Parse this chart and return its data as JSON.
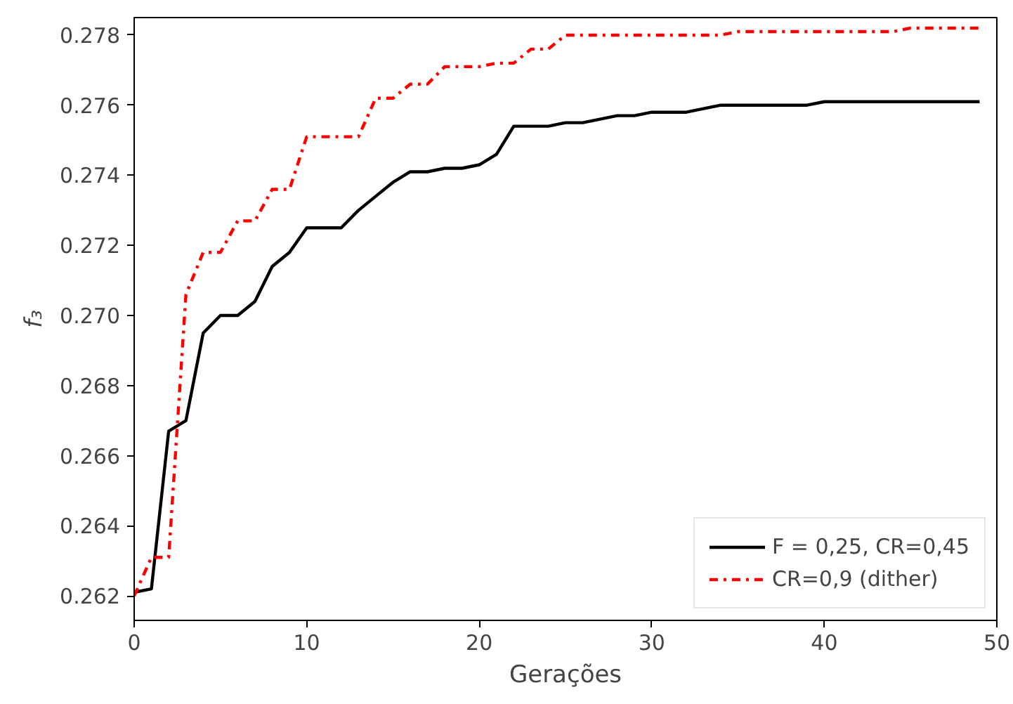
{
  "chart_data": {
    "type": "line",
    "xlabel": "Gerações",
    "ylabel": "f₃",
    "x": [
      0,
      1,
      2,
      3,
      4,
      5,
      6,
      7,
      8,
      9,
      10,
      11,
      12,
      13,
      14,
      15,
      16,
      17,
      18,
      19,
      20,
      21,
      22,
      23,
      24,
      25,
      26,
      27,
      28,
      29,
      30,
      31,
      32,
      33,
      34,
      35,
      36,
      37,
      38,
      39,
      40,
      41,
      42,
      43,
      44,
      45,
      46,
      47,
      48,
      49
    ],
    "series": [
      {
        "name": "F = 0,25, CR=0,45",
        "color": "#000000",
        "line_style": "solid",
        "values": [
          0.2621,
          0.2622,
          0.2667,
          0.267,
          0.2695,
          0.27,
          0.27,
          0.2704,
          0.2714,
          0.2718,
          0.2725,
          0.2725,
          0.2725,
          0.273,
          0.2734,
          0.2738,
          0.2741,
          0.2741,
          0.2742,
          0.2742,
          0.2743,
          0.2746,
          0.2754,
          0.2754,
          0.2754,
          0.2755,
          0.2755,
          0.2756,
          0.2757,
          0.2757,
          0.2758,
          0.2758,
          0.2758,
          0.2759,
          0.276,
          0.276,
          0.276,
          0.276,
          0.276,
          0.276,
          0.2761,
          0.2761,
          0.2761,
          0.2761,
          0.2761,
          0.2761,
          0.2761,
          0.2761,
          0.2761,
          0.2761
        ]
      },
      {
        "name": "CR=0,9 (dither)",
        "color": "#ff0000",
        "line_style": "dashdot",
        "values": [
          0.262,
          0.2631,
          0.2631,
          0.2706,
          0.2718,
          0.2718,
          0.2727,
          0.2727,
          0.2736,
          0.2736,
          0.2751,
          0.2751,
          0.2751,
          0.2751,
          0.2762,
          0.2762,
          0.2766,
          0.2766,
          0.2771,
          0.2771,
          0.2771,
          0.2772,
          0.2772,
          0.2776,
          0.2776,
          0.278,
          0.278,
          0.278,
          0.278,
          0.278,
          0.278,
          0.278,
          0.278,
          0.278,
          0.278,
          0.2781,
          0.2781,
          0.2781,
          0.2781,
          0.2781,
          0.2781,
          0.2781,
          0.2781,
          0.2781,
          0.2781,
          0.2782,
          0.2782,
          0.2782,
          0.2782,
          0.2782
        ]
      }
    ],
    "xlim": [
      0,
      50
    ],
    "ylim": [
      0.2613,
      0.2785
    ],
    "xticks": [
      0,
      10,
      20,
      30,
      40,
      50
    ],
    "yticks": [
      {
        "value": 0.262,
        "label": "0.262"
      },
      {
        "value": 0.264,
        "label": "0.264"
      },
      {
        "value": 0.266,
        "label": "0.266"
      },
      {
        "value": 0.268,
        "label": "0.268"
      },
      {
        "value": 0.27,
        "label": "0.270"
      },
      {
        "value": 0.272,
        "label": "0.272"
      },
      {
        "value": 0.274,
        "label": "0.274"
      },
      {
        "value": 0.276,
        "label": "0.276"
      },
      {
        "value": 0.278,
        "label": "0.278"
      }
    ],
    "grid": false,
    "legend": "bottom right"
  }
}
